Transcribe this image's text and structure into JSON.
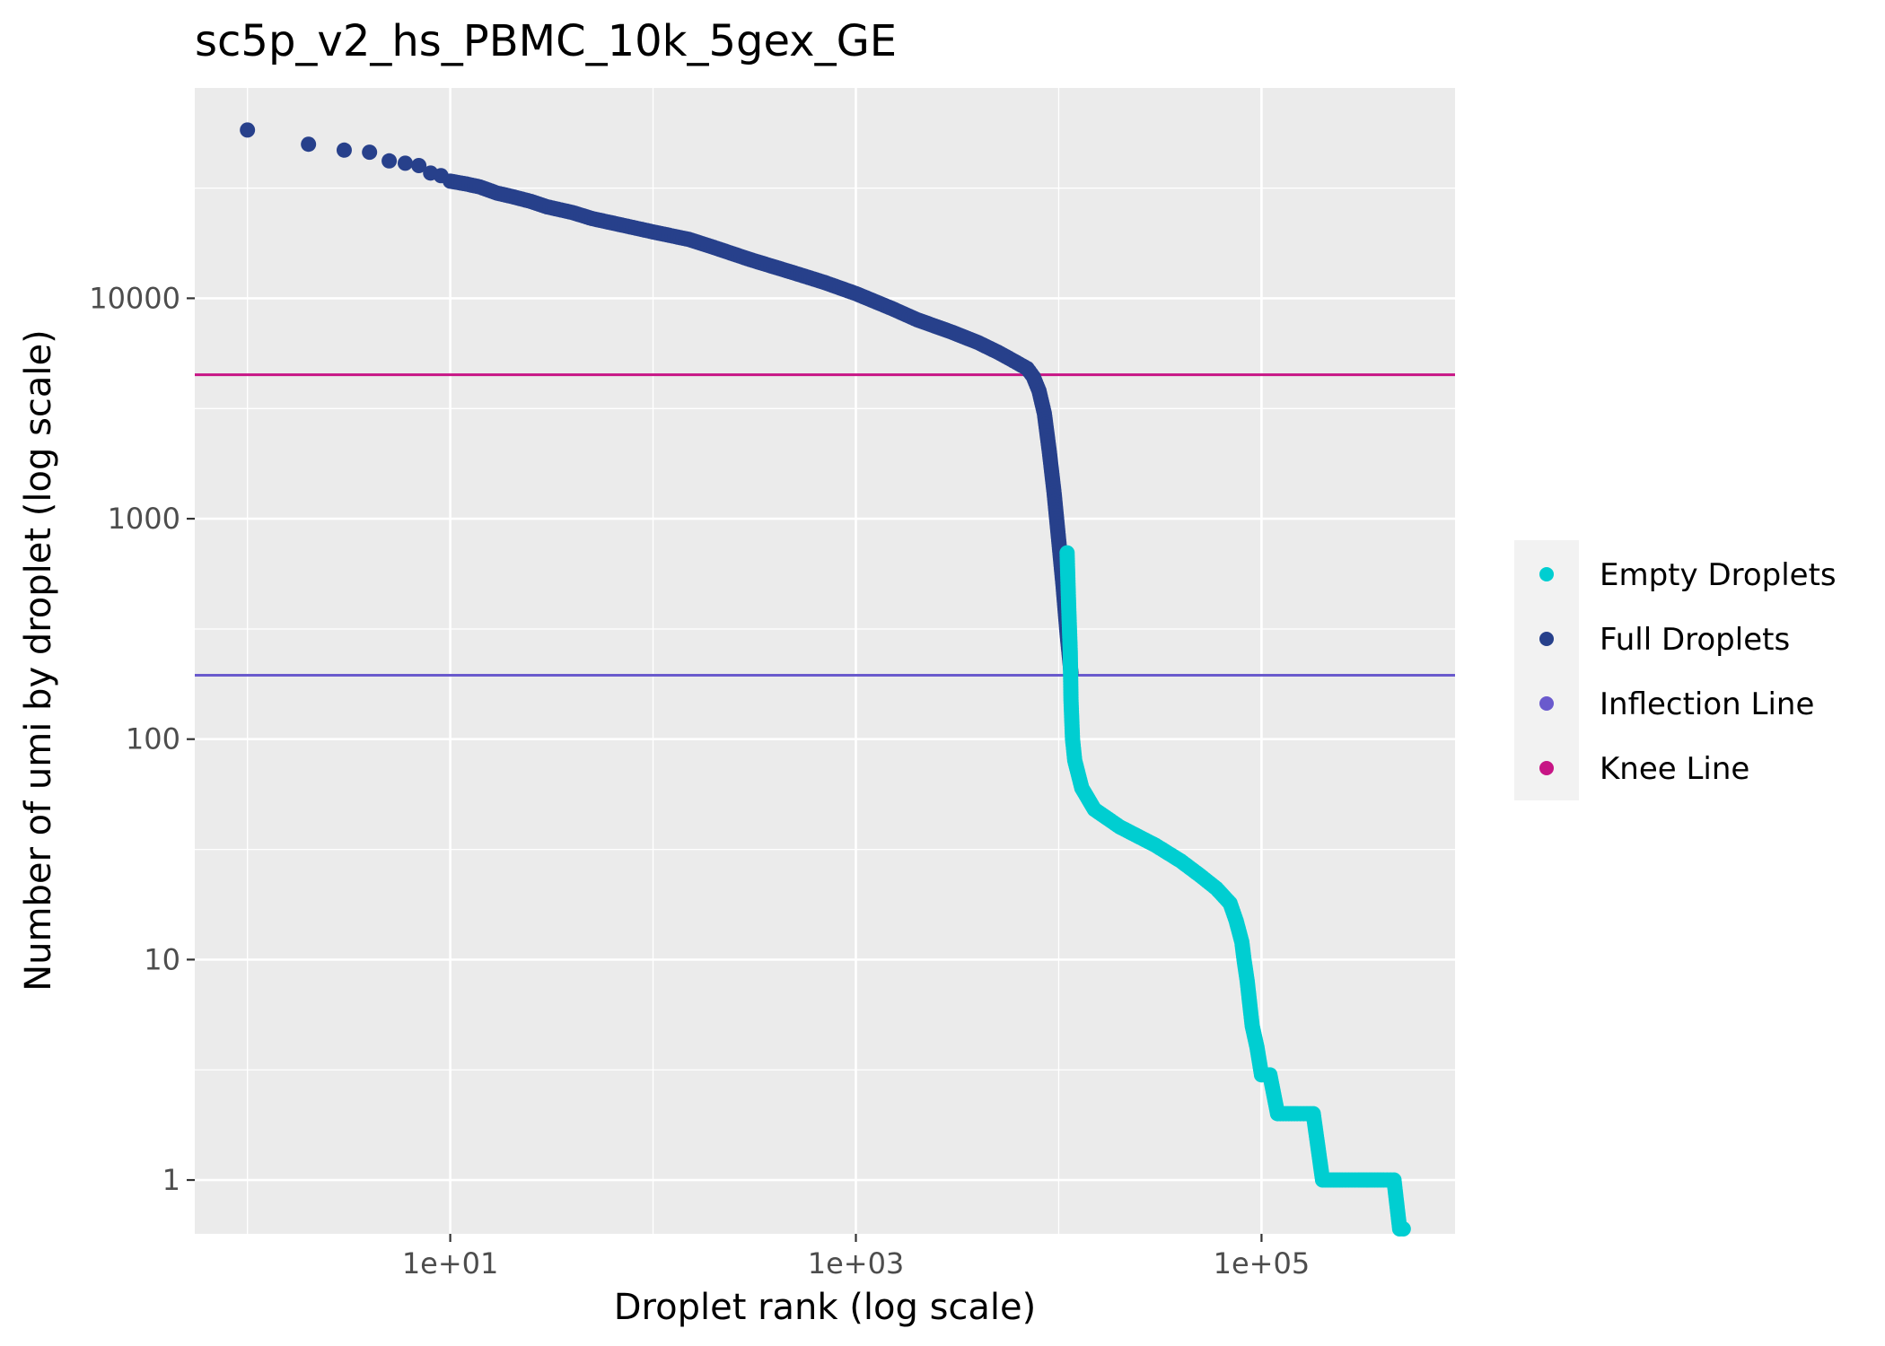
{
  "chart_data": {
    "type": "scatter",
    "title": "sc5p_v2_hs_PBMC_10k_5gex_GE",
    "xlabel": "Droplet rank (log scale)",
    "ylabel": "Number of umi by droplet (log scale)",
    "x_scale": "log10",
    "y_scale": "log10",
    "xlim": [
      0.55,
      900000
    ],
    "ylim": [
      0.57,
      90000
    ],
    "x_ticks": [
      10,
      1000,
      100000
    ],
    "x_tick_labels": [
      "1e+01",
      "1e+03",
      "1e+05"
    ],
    "y_ticks": [
      1,
      10,
      100,
      1000,
      10000
    ],
    "y_tick_labels": [
      "1",
      "10",
      "100",
      "1000",
      "10000"
    ],
    "grid": true,
    "legend_position": "right",
    "legend": [
      {
        "label": "Empty Droplets",
        "color": "#00CED1"
      },
      {
        "label": "Full Droplets",
        "color": "#27408B"
      },
      {
        "label": "Inflection Line",
        "color": "#6A5ACD"
      },
      {
        "label": "Knee Line",
        "color": "#C71585"
      }
    ],
    "hlines": [
      {
        "name": "Knee Line",
        "y": 4500,
        "color": "#C71585"
      },
      {
        "name": "Inflection Line",
        "y": 195,
        "color": "#6A5ACD"
      }
    ],
    "series": [
      {
        "name": "Full Droplets",
        "color": "#27408B",
        "x": [
          1,
          2,
          3,
          4,
          5,
          6,
          7,
          8,
          9,
          10,
          12,
          14,
          17,
          20,
          25,
          30,
          40,
          50,
          70,
          100,
          150,
          200,
          300,
          500,
          700,
          1000,
          1500,
          2000,
          3000,
          4000,
          5000,
          6000,
          7000,
          7500,
          8000,
          8500,
          9000,
          9500,
          10000,
          10500,
          11000,
          11500
        ],
        "y": [
          58000,
          50000,
          47000,
          46000,
          42000,
          41000,
          40000,
          37000,
          36000,
          34000,
          33000,
          32000,
          30000,
          29000,
          27500,
          26000,
          24500,
          23000,
          21500,
          20000,
          18500,
          17000,
          15000,
          13000,
          11800,
          10500,
          9000,
          8000,
          7000,
          6300,
          5700,
          5200,
          4800,
          4400,
          3800,
          3000,
          2000,
          1300,
          800,
          500,
          300,
          200
        ]
      },
      {
        "name": "Empty Droplets",
        "color": "#00CED1",
        "x": [
          11000,
          11200,
          11400,
          11500,
          11700,
          12000,
          13000,
          15000,
          20000,
          30000,
          40000,
          50000,
          60000,
          70000,
          75000,
          80000,
          82000,
          85000,
          88000,
          90000,
          95000,
          100000,
          110000,
          120000,
          150000,
          180000,
          200000,
          250000,
          300000,
          350000,
          400000,
          450000,
          480000,
          500000
        ],
        "y": [
          700,
          400,
          250,
          150,
          100,
          80,
          60,
          48,
          40,
          33,
          28,
          24,
          21,
          18,
          15,
          12,
          10,
          8,
          6,
          5,
          4,
          3,
          3,
          2,
          2,
          2,
          1,
          1,
          1,
          1,
          1,
          1,
          0.6,
          0.6
        ]
      }
    ]
  }
}
